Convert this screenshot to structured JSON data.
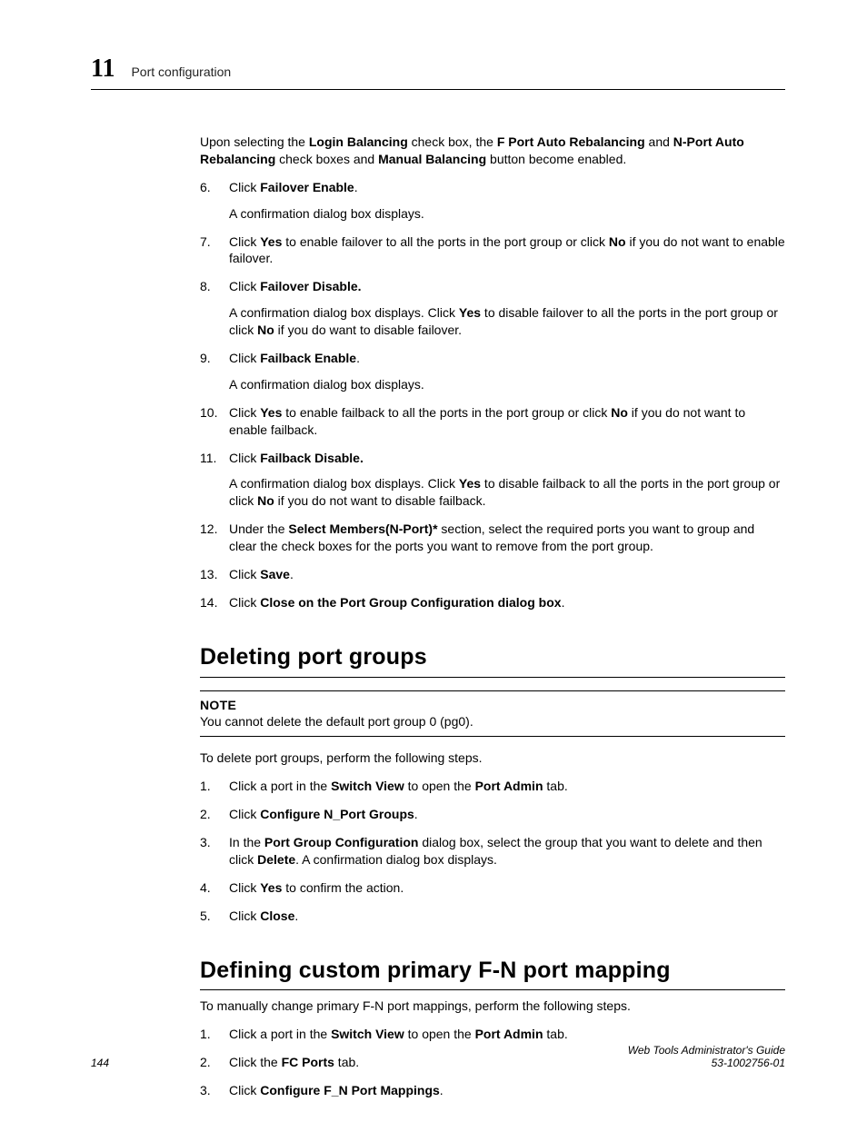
{
  "header": {
    "chapter_number": "11",
    "chapter_title": "Port configuration"
  },
  "intro": {
    "pre": "Upon selecting the ",
    "b1": "Login Balancing",
    "mid1": " check box, the ",
    "b2": "F Port Auto Rebalancing",
    "mid2": " and ",
    "b3": "N-Port Auto Rebalancing",
    "mid3": " check boxes and ",
    "b4": "Manual Balancing",
    "post": " button become enabled."
  },
  "steps": {
    "s6": {
      "pre": "Click ",
      "b": "Failover Enable",
      "post": "."
    },
    "s6sub": "A confirmation dialog box displays.",
    "s7": {
      "pre": "Click ",
      "b1": "Yes",
      "mid": " to enable failover to all the ports in the port group or click ",
      "b2": "No",
      "post": " if you do not want to enable failover."
    },
    "s8": {
      "pre": "Click ",
      "b": "Failover Disable.",
      "post": ""
    },
    "s8sub": {
      "pre": "A confirmation dialog box displays. Click ",
      "b1": "Yes",
      "mid": " to disable failover to all the ports in the port group or click ",
      "b2": "No",
      "post": " if you do want to disable failover."
    },
    "s9": {
      "pre": "Click ",
      "b": "Failback Enable",
      "post": "."
    },
    "s9sub": "A confirmation dialog box displays.",
    "s10": {
      "pre": "Click ",
      "b1": "Yes",
      "mid": " to enable failback to all the ports in the port group or click ",
      "b2": "No",
      "post": " if you do not want to enable failback."
    },
    "s11": {
      "pre": "Click ",
      "b": "Failback Disable.",
      "post": ""
    },
    "s11sub": {
      "pre": "A confirmation dialog box displays. Click ",
      "b1": "Yes",
      "mid": " to disable failback to all the ports in the port group or click ",
      "b2": "No",
      "post": " if you do not want to disable failback."
    },
    "s12": {
      "pre": "Under the ",
      "b": "Select Members(N-Port)*",
      "post": " section, select the required ports you want to group and clear the check boxes for the ports you want to remove from the port group."
    },
    "s13": {
      "pre": "Click ",
      "b": "Save",
      "post": "."
    },
    "s14": {
      "pre": "Click ",
      "b1": "Close on the",
      "mid": " ",
      "b2": "Port Group Configuration",
      "mid2": " ",
      "b3": "dialog box",
      "post": "."
    }
  },
  "section1": {
    "title": "Deleting port groups",
    "note_label": "NOTE",
    "note_text": "You cannot delete the default port group 0 (pg0).",
    "lead": "To delete port groups, perform the following steps.",
    "d1": {
      "pre": "Click a port in the ",
      "b1": "Switch View",
      "mid": " to open the ",
      "b2": "Port Admin",
      "post": " tab."
    },
    "d2": {
      "pre": "Click ",
      "b": "Configure N_Port Groups",
      "post": "."
    },
    "d3": {
      "pre": "In the ",
      "b1": "Port Group Configuration",
      "mid": " dialog box, select the group that you want to delete and then click ",
      "b2": "Delete",
      "post": ". A confirmation dialog box displays."
    },
    "d4": {
      "pre": "Click ",
      "b": "Yes",
      "post": " to confirm the action."
    },
    "d5": {
      "pre": "Click ",
      "b": "Close",
      "post": "."
    }
  },
  "section2": {
    "title": "Defining custom primary F-N port mapping",
    "lead": "To manually change primary F-N port mappings, perform the following steps.",
    "m1": {
      "pre": "Click a port in the ",
      "b1": "Switch View",
      "mid": " to open the ",
      "b2": "Port Admin",
      "post": " tab."
    },
    "m2": {
      "pre": "Click the ",
      "b": "FC Ports",
      "post": " tab."
    },
    "m3": {
      "pre": "Click ",
      "b": "Configure F_N Port Mappings",
      "post": "."
    }
  },
  "footer": {
    "page": "144",
    "guide": "Web Tools Administrator's Guide",
    "docnum": "53-1002756-01"
  }
}
